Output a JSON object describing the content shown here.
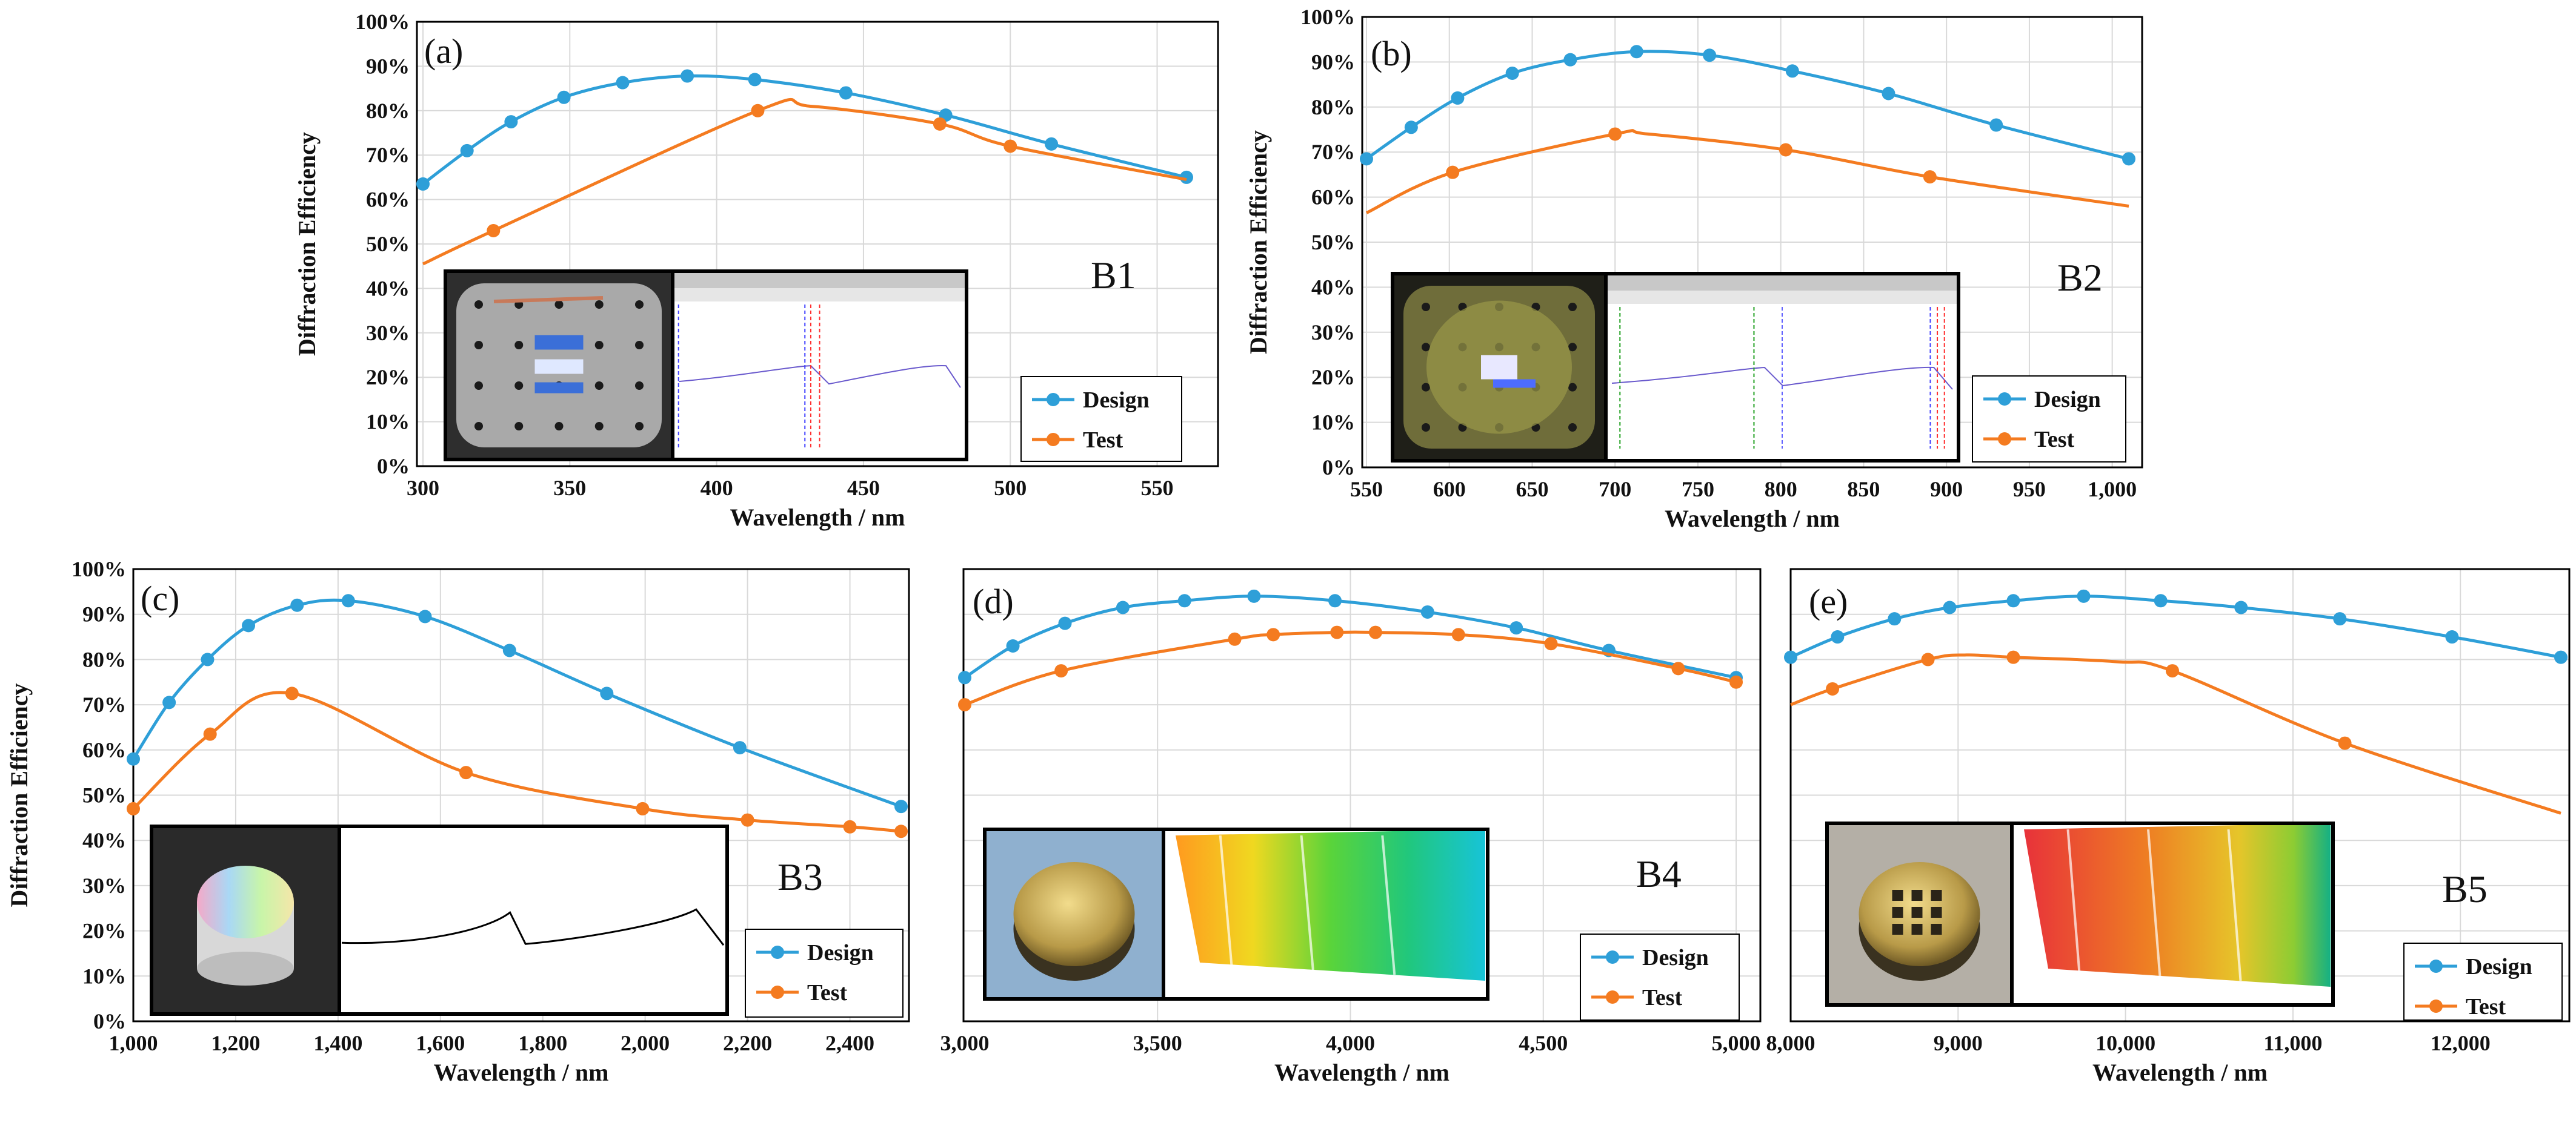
{
  "colors": {
    "design": "#2e9fd8",
    "test": "#f47b20",
    "grid": "#d9d9d9",
    "frame": "#000000"
  },
  "chart_data": [
    {
      "type": "line",
      "panel": "(a)",
      "sample": "B1",
      "xlabel": "Wavelength / nm",
      "ylabel": "Diffraction Efficiency",
      "xlim": [
        300,
        560
      ],
      "ylim": [
        0,
        100
      ],
      "xticks": [
        300,
        350,
        400,
        450,
        500,
        550
      ],
      "xtick_labels": [
        "300",
        "350",
        "400",
        "450",
        "500",
        "550"
      ],
      "yticks": [
        0,
        10,
        20,
        30,
        40,
        50,
        60,
        70,
        80,
        90,
        100
      ],
      "ytick_labels": [
        "0%",
        "10%",
        "20%",
        "30%",
        "40%",
        "50%",
        "60%",
        "70%",
        "80%",
        "90%",
        "100%"
      ],
      "legend": [
        "Design",
        "Test"
      ],
      "series": [
        {
          "name": "Design",
          "x": [
            300,
            315,
            330,
            348,
            368,
            390,
            413,
            444,
            478,
            514,
            560
          ],
          "values": [
            63.5,
            71,
            77.5,
            83,
            86.3,
            87.8,
            87,
            84,
            79,
            72.5,
            65
          ],
          "marker_x": [
            300,
            315,
            330,
            348,
            368,
            390,
            413,
            444,
            478,
            514,
            560
          ]
        },
        {
          "name": "Test",
          "x": [
            300,
            324,
            414,
            432,
            476,
            500,
            560
          ],
          "values": [
            45.5,
            53,
            80,
            81,
            77,
            72,
            64.5
          ],
          "marker_x": [
            324,
            414,
            476,
            500
          ]
        }
      ]
    },
    {
      "type": "line",
      "panel": "(b)",
      "sample": "B2",
      "xlabel": "Wavelength / nm",
      "ylabel": "Diffraction Efficiency",
      "xlim": [
        550,
        1010
      ],
      "ylim": [
        0,
        100
      ],
      "xticks": [
        550,
        600,
        650,
        700,
        750,
        800,
        850,
        900,
        950,
        1000
      ],
      "xtick_labels": [
        "550",
        "600",
        "650",
        "700",
        "750",
        "800",
        "850",
        "900",
        "950",
        "1,000"
      ],
      "yticks": [
        0,
        10,
        20,
        30,
        40,
        50,
        60,
        70,
        80,
        90,
        100
      ],
      "ytick_labels": [
        "0%",
        "10%",
        "20%",
        "30%",
        "40%",
        "50%",
        "60%",
        "70%",
        "80%",
        "90%",
        "100%"
      ],
      "legend": [
        "Design",
        "Test"
      ],
      "series": [
        {
          "name": "Design",
          "x": [
            550,
            577,
            605,
            638,
            673,
            713,
            757,
            807,
            865,
            930,
            1010
          ],
          "values": [
            68.5,
            75.5,
            82,
            87.5,
            90.5,
            92.3,
            91.5,
            88,
            83,
            76,
            68.5
          ],
          "marker_x": [
            550,
            577,
            605,
            638,
            673,
            713,
            757,
            807,
            865,
            930,
            1010
          ]
        },
        {
          "name": "Test",
          "x": [
            550,
            602,
            700,
            720,
            803,
            890,
            1010
          ],
          "values": [
            56.5,
            65.5,
            74,
            74,
            70.5,
            64.5,
            58
          ],
          "marker_x": [
            602,
            700,
            803,
            890
          ]
        }
      ]
    },
    {
      "type": "line",
      "panel": "(c)",
      "sample": "B3",
      "xlabel": "Wavelength / nm",
      "ylabel": "Diffraction Efficiency",
      "xlim": [
        1000,
        2500
      ],
      "ylim": [
        0,
        100
      ],
      "xticks": [
        1000,
        1200,
        1400,
        1600,
        1800,
        2000,
        2200,
        2400
      ],
      "xtick_labels": [
        "1,000",
        "1,200",
        "1,400",
        "1,600",
        "1,800",
        "2,000",
        "2,200",
        "2,400"
      ],
      "yticks": [
        0,
        10,
        20,
        30,
        40,
        50,
        60,
        70,
        80,
        90,
        100
      ],
      "ytick_labels": [
        "0%",
        "10%",
        "20%",
        "30%",
        "40%",
        "50%",
        "60%",
        "70%",
        "80%",
        "90%",
        "100%"
      ],
      "legend": [
        "Design",
        "Test"
      ],
      "series": [
        {
          "name": "Design",
          "x": [
            1000,
            1070,
            1145,
            1225,
            1320,
            1420,
            1570,
            1735,
            1925,
            2185,
            2500
          ],
          "values": [
            58,
            70.5,
            80,
            87.5,
            92,
            93,
            89.5,
            82,
            72.5,
            60.5,
            47.5
          ],
          "marker_x": [
            1000,
            1070,
            1145,
            1225,
            1320,
            1420,
            1570,
            1735,
            1925,
            2185,
            2500
          ]
        },
        {
          "name": "Test",
          "x": [
            1000,
            1150,
            1310,
            1650,
            1995,
            2200,
            2400,
            2500
          ],
          "values": [
            47,
            63.5,
            72.5,
            55,
            47,
            44.5,
            43,
            42
          ],
          "marker_x": [
            1000,
            1150,
            1310,
            1650,
            1995,
            2200,
            2400,
            2500
          ]
        }
      ]
    },
    {
      "type": "line",
      "panel": "(d)",
      "sample": "B4",
      "xlabel": "Wavelength / nm",
      "ylabel": "",
      "xlim": [
        3000,
        5000
      ],
      "ylim": [
        0,
        100
      ],
      "xticks": [
        3000,
        3500,
        4000,
        4500,
        5000
      ],
      "xtick_labels": [
        "3,000",
        "3,500",
        "4,000",
        "4,500",
        "5,000"
      ],
      "yticks": [
        0,
        10,
        20,
        30,
        40,
        50,
        60,
        70,
        80,
        90,
        100
      ],
      "ytick_labels": [],
      "legend": [
        "Design",
        "Test"
      ],
      "series": [
        {
          "name": "Design",
          "x": [
            3000,
            3125,
            3260,
            3410,
            3570,
            3750,
            3960,
            4200,
            4430,
            4670,
            5000
          ],
          "values": [
            76,
            83,
            88,
            91.5,
            93,
            94,
            93,
            90.5,
            87,
            82,
            76
          ],
          "marker_x": [
            3000,
            3125,
            3260,
            3410,
            3570,
            3750,
            3960,
            4200,
            4430,
            4670,
            5000
          ]
        },
        {
          "name": "Test",
          "x": [
            3000,
            3250,
            3700,
            3800,
            3965,
            4065,
            4280,
            4520,
            4850,
            5000
          ],
          "values": [
            70,
            77.5,
            84.5,
            85.5,
            86,
            86,
            85.5,
            83.5,
            78,
            75
          ],
          "marker_x": [
            3000,
            3250,
            3700,
            3800,
            3965,
            4065,
            4280,
            4520,
            4850,
            5000
          ]
        }
      ]
    },
    {
      "type": "line",
      "panel": "(e)",
      "sample": "B5",
      "xlabel": "Wavelength / nm",
      "ylabel": "",
      "xlim": [
        8000,
        12600
      ],
      "ylim": [
        0,
        100
      ],
      "xticks": [
        8000,
        9000,
        10000,
        11000,
        12000
      ],
      "xtick_labels": [
        "8,000",
        "9,000",
        "10,000",
        "11,000",
        "12,000"
      ],
      "yticks": [
        0,
        10,
        20,
        30,
        40,
        50,
        60,
        70,
        80,
        90,
        100
      ],
      "ytick_labels": [],
      "legend": [
        "Design",
        "Test"
      ],
      "series": [
        {
          "name": "Design",
          "x": [
            8000,
            8280,
            8620,
            8950,
            9330,
            9750,
            10210,
            10690,
            11280,
            11950,
            12600
          ],
          "values": [
            80.5,
            85,
            89,
            91.5,
            93,
            94,
            93,
            91.5,
            89,
            85,
            80.5
          ],
          "marker_x": [
            8000,
            8280,
            8620,
            8950,
            9330,
            9750,
            10210,
            10690,
            11280,
            11950,
            12600
          ]
        },
        {
          "name": "Test",
          "x": [
            8000,
            8250,
            8820,
            9050,
            9330,
            9950,
            10280,
            11310,
            12600
          ],
          "values": [
            70,
            73.5,
            80,
            81,
            80.5,
            79.5,
            77.5,
            61.5,
            46
          ],
          "marker_x": [
            8250,
            8820,
            9330,
            10280,
            11310
          ]
        }
      ]
    }
  ]
}
